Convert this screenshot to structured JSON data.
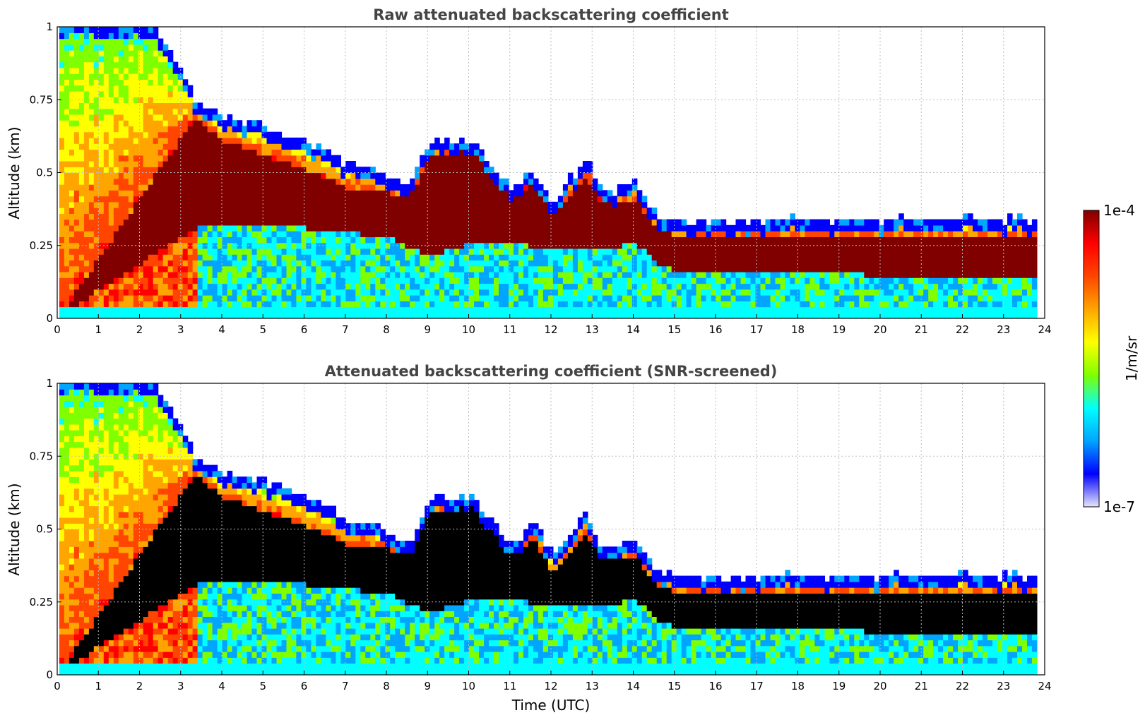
{
  "colors": {
    "colormap": [
      "#e6e6fa",
      "#0000ff",
      "#00a5ff",
      "#00ffff",
      "#7fff00",
      "#ffff00",
      "#ffa500",
      "#ff4500",
      "#ff0000",
      "#800000"
    ],
    "saturated_screened": "#000000",
    "grid": "#bdbdbd",
    "title": "#444444"
  },
  "colorbar": {
    "label": "1/m/sr",
    "min_label": "1e-7",
    "max_label": "1e-4",
    "scale": "log"
  },
  "chart_data": [
    {
      "type": "heatmap",
      "title": "Raw attenuated backscattering coefficient",
      "xlabel": "",
      "ylabel": "Altitude (km)",
      "xlim": [
        0,
        24
      ],
      "ylim": [
        0,
        1
      ],
      "xticks": [
        "0",
        "1",
        "2",
        "3",
        "4",
        "5",
        "6",
        "7",
        "8",
        "9",
        "10",
        "11",
        "12",
        "13",
        "14",
        "15",
        "16",
        "17",
        "18",
        "19",
        "20",
        "21",
        "22",
        "23",
        "24"
      ],
      "yticks": [
        "0",
        "0.25",
        "0.5",
        "0.75",
        "1"
      ],
      "grid": true,
      "colorscale": "jet, log10 from 1e-7 to 1e-4 (1/m/sr)",
      "time_range_utc": [
        0.05,
        23.8
      ],
      "saturation_color": "dark red",
      "top_of_signal_km": {
        "t": [
          0,
          2.3,
          3.3,
          4,
          5,
          6,
          7,
          8,
          8.5,
          9,
          10,
          11,
          11.5,
          12,
          12.8,
          13.2,
          14,
          14.5,
          15,
          24
        ],
        "z": [
          1.0,
          1.0,
          0.74,
          0.68,
          0.65,
          0.6,
          0.52,
          0.48,
          0.45,
          0.6,
          0.6,
          0.43,
          0.5,
          0.38,
          0.55,
          0.42,
          0.45,
          0.35,
          0.33,
          0.33
        ]
      },
      "dense_layer_top_km": {
        "t": [
          0,
          3.3,
          4,
          5,
          6,
          7,
          8,
          8.5,
          9,
          10,
          11,
          11.5,
          12,
          12.8,
          13.2,
          14,
          14.5,
          15,
          24
        ],
        "z": [
          0.0,
          0.68,
          0.6,
          0.55,
          0.5,
          0.44,
          0.42,
          0.4,
          0.55,
          0.57,
          0.4,
          0.46,
          0.34,
          0.48,
          0.38,
          0.4,
          0.3,
          0.27,
          0.27
        ]
      },
      "dense_layer_bottom_km": {
        "t": [
          0,
          3.3,
          4,
          6,
          8,
          9,
          10,
          11,
          12,
          13,
          14,
          14.5,
          15,
          24
        ],
        "z": [
          0.0,
          0.3,
          0.32,
          0.3,
          0.27,
          0.2,
          0.25,
          0.25,
          0.22,
          0.22,
          0.25,
          0.18,
          0.15,
          0.13
        ]
      }
    },
    {
      "type": "heatmap",
      "title": "Attenuated backscattering coefficient (SNR-screened)",
      "xlabel": "Time (UTC)",
      "ylabel": "Altitude (km)",
      "xlim": [
        0,
        24
      ],
      "ylim": [
        0,
        1
      ],
      "xticks": [
        "0",
        "1",
        "2",
        "3",
        "4",
        "5",
        "6",
        "7",
        "8",
        "9",
        "10",
        "11",
        "12",
        "13",
        "14",
        "15",
        "16",
        "17",
        "18",
        "19",
        "20",
        "21",
        "22",
        "23",
        "24"
      ],
      "yticks": [
        "0",
        "0.25",
        "0.5",
        "0.75",
        "1"
      ],
      "grid": true,
      "colorscale": "jet, log10 from 1e-7 to 1e-4 (1/m/sr)",
      "time_range_utc": [
        0.05,
        23.8
      ],
      "saturation_color": "black",
      "top_of_signal_km": {
        "t": [
          0,
          2.3,
          3.3,
          4,
          5,
          6,
          7,
          8,
          8.5,
          9,
          10,
          11,
          11.5,
          12,
          12.8,
          13.2,
          14,
          14.5,
          15,
          24
        ],
        "z": [
          1.0,
          1.0,
          0.74,
          0.68,
          0.66,
          0.6,
          0.52,
          0.48,
          0.45,
          0.6,
          0.6,
          0.43,
          0.52,
          0.4,
          0.55,
          0.42,
          0.45,
          0.35,
          0.33,
          0.33
        ]
      },
      "dense_layer_top_km": {
        "t": [
          0,
          3.3,
          4,
          5,
          6,
          7,
          8,
          8.5,
          9,
          10,
          11,
          11.5,
          12,
          12.8,
          13.2,
          14,
          14.5,
          15,
          24
        ],
        "z": [
          0.0,
          0.68,
          0.6,
          0.55,
          0.5,
          0.44,
          0.42,
          0.4,
          0.55,
          0.57,
          0.4,
          0.46,
          0.34,
          0.48,
          0.38,
          0.4,
          0.3,
          0.27,
          0.27
        ]
      },
      "dense_layer_bottom_km": {
        "t": [
          0,
          3.3,
          4,
          6,
          8,
          9,
          10,
          11,
          12,
          13,
          14,
          14.5,
          15,
          24
        ],
        "z": [
          0.0,
          0.3,
          0.32,
          0.3,
          0.27,
          0.2,
          0.25,
          0.25,
          0.22,
          0.22,
          0.25,
          0.18,
          0.15,
          0.13
        ]
      }
    }
  ]
}
